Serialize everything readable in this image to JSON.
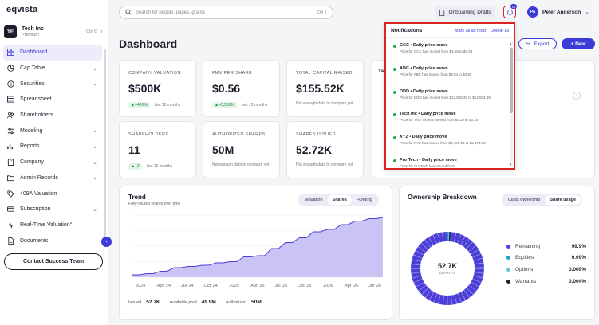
{
  "app": {
    "logo": "eqvista"
  },
  "company": {
    "initials": "TE",
    "name": "Tech Inc",
    "plan": "Premium",
    "shortcut": "Ctrl O"
  },
  "sidebar": {
    "items": [
      {
        "label": "Dashboard",
        "icon": "grid-icon",
        "chevron": false,
        "active": true
      },
      {
        "label": "Cap Table",
        "icon": "pie-icon",
        "chevron": true
      },
      {
        "label": "Securities",
        "icon": "dollar-icon",
        "chevron": true
      },
      {
        "label": "Spreadsheet",
        "icon": "table-icon",
        "chevron": false
      },
      {
        "label": "Shareholders",
        "icon": "users-icon",
        "chevron": false
      },
      {
        "label": "Modeling",
        "icon": "sliders-icon",
        "chevron": true
      },
      {
        "label": "Reports",
        "icon": "chart-icon",
        "chevron": true
      },
      {
        "label": "Company",
        "icon": "building-icon",
        "chevron": true
      },
      {
        "label": "Admin Records",
        "icon": "folder-icon",
        "chevron": true
      },
      {
        "label": "409A Valuation",
        "icon": "tag-icon",
        "chevron": false
      },
      {
        "label": "Subscription",
        "icon": "card-icon",
        "chevron": true
      },
      {
        "label": "Real-Time Valuation°",
        "icon": "pulse-icon",
        "chevron": false
      },
      {
        "label": "Documents",
        "icon": "document-icon",
        "chevron": false
      }
    ],
    "contact_button": "Contact Success Team"
  },
  "topbar": {
    "search_placeholder": "Search for people, pages, grants",
    "search_shortcut": "Ctrl K",
    "onboarding_label": "Onboarding Drafts",
    "notif_count": "10",
    "user_initials": "PA",
    "user_name": "Peter Anderson"
  },
  "page": {
    "title": "Dashboard",
    "export_label": "Export",
    "new_label": "+ New"
  },
  "metrics": [
    {
      "label": "COMPANY VALUATION",
      "value": "$500K",
      "delta": "▲+400%",
      "period": "last 12 months"
    },
    {
      "label": "FMV PER SHARE",
      "value": "$0.56",
      "delta": "▲+5,500%",
      "period": "last 12 months"
    },
    {
      "label": "TOTAL CAPITAL RAISED",
      "value": "$155.52K",
      "note": "Not enough data to compare yet"
    },
    {
      "label": "SHAREHOLDERS",
      "value": "11",
      "delta": "▲+2",
      "period": "last 12 months"
    },
    {
      "label": "AUTHORIZED SHARES",
      "value": "50M",
      "note": "Not enough data to compare yet"
    },
    {
      "label": "SHARES ISSUED",
      "value": "52.72K",
      "note": "Not enough data to compare yet"
    }
  ],
  "hidden_card": {
    "title_fragment": "Ta"
  },
  "trend": {
    "title": "Trend",
    "subtitle": "Fully-diluted shares over time",
    "tabs": [
      "Valuation",
      "Shares",
      "Funding"
    ],
    "active_tab": "Shares",
    "footer": {
      "issued_label": "Issued",
      "issued_value": "52.7K",
      "pool_label": "Available pool",
      "pool_value": "49.9M",
      "authorized_label": "Authorized",
      "authorized_value": "50M"
    }
  },
  "chart_data": {
    "type": "area",
    "title": "Trend",
    "xlabel": "",
    "ylabel": "",
    "x_tick_labels": [
      "2024",
      "Apr '24",
      "Jul '24",
      "Oct '24",
      "2025",
      "Apr '25",
      "Jul '25",
      "Oct '25",
      "2026",
      "Apr '26",
      "Jul '26"
    ],
    "series": [
      {
        "values": [
          2,
          2,
          3,
          3,
          5,
          5,
          8,
          8,
          9,
          9,
          10,
          10,
          12,
          12,
          13,
          13,
          17,
          17,
          18,
          18,
          24,
          24,
          29,
          29,
          33,
          33,
          38,
          38,
          40,
          40,
          44,
          44,
          47,
          47,
          49,
          49,
          50
        ]
      }
    ],
    "colors": {
      "line": "#4b3fd8",
      "fill": "#c9c4f3"
    }
  },
  "ownership": {
    "title": "Ownership Breakdown",
    "tabs": [
      "Class ownership",
      "Share usage"
    ],
    "active_tab": "Share usage",
    "center_value": "52.7K",
    "center_label": "SHARES",
    "legend": [
      {
        "name": "Remaining",
        "value": "99.9%",
        "color": "#4b3fd8",
        "fraction": 0.999
      },
      {
        "name": "Equities",
        "value": "0.09%",
        "color": "#1f9bd1",
        "fraction": 0.0009
      },
      {
        "name": "Options",
        "value": "0.009%",
        "color": "#5ac8e0",
        "fraction": 9e-05
      },
      {
        "name": "Warrants",
        "value": "0.004%",
        "color": "#1d1d2b",
        "fraction": 4e-05
      }
    ]
  },
  "notifications": {
    "title": "Notifications",
    "mark_all": "Mark all as read",
    "delete_all": "Delete all",
    "items": [
      {
        "title": "CCC • Daily price move",
        "body": "Price for CCC has moved from $3.55 to $3.53"
      },
      {
        "title": "ABC • Daily price move",
        "body": "Price for ABC has moved from $4.94 to $4.92"
      },
      {
        "title": "DDD • Daily price move",
        "body": "Price for DDD has moved from $12,546.30 to $12,563.49"
      },
      {
        "title": "Tech Inc • Daily price move",
        "body": "Price for Tech Inc has moved from $0.19 to $0.20"
      },
      {
        "title": "XYZ • Daily price move",
        "body": "Price for XYZ has moved from $2,459.56 to $2,473.00"
      },
      {
        "title": "Pro Tech • Daily price move",
        "body": "Price for Pro Tech has moved from"
      }
    ]
  },
  "colors": {
    "accent": "#3b3bd6",
    "positive": "#1f8a3c",
    "highlight": "#dd2222"
  }
}
